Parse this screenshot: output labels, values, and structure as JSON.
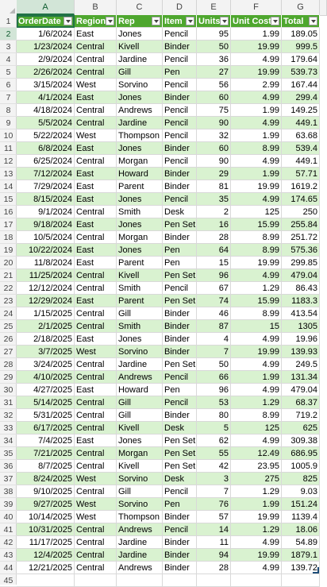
{
  "columns": [
    "A",
    "B",
    "C",
    "D",
    "E",
    "F",
    "G"
  ],
  "headers": [
    "OrderDate",
    "Region",
    "Rep",
    "Item",
    "Units",
    "Unit Cost",
    "Total"
  ],
  "row_numbers": [
    1,
    2,
    3,
    4,
    5,
    6,
    7,
    8,
    9,
    10,
    11,
    12,
    13,
    14,
    15,
    16,
    17,
    18,
    19,
    20,
    21,
    22,
    23,
    24,
    25,
    26,
    27,
    28,
    29,
    30,
    31,
    32,
    33,
    34,
    35,
    36,
    37,
    38,
    39,
    40,
    41,
    42,
    43,
    44,
    45
  ],
  "rows": [
    [
      "1/6/2024",
      "East",
      "Jones",
      "Pencil",
      "95",
      "1.99",
      "189.05"
    ],
    [
      "1/23/2024",
      "Central",
      "Kivell",
      "Binder",
      "50",
      "19.99",
      "999.5"
    ],
    [
      "2/9/2024",
      "Central",
      "Jardine",
      "Pencil",
      "36",
      "4.99",
      "179.64"
    ],
    [
      "2/26/2024",
      "Central",
      "Gill",
      "Pen",
      "27",
      "19.99",
      "539.73"
    ],
    [
      "3/15/2024",
      "West",
      "Sorvino",
      "Pencil",
      "56",
      "2.99",
      "167.44"
    ],
    [
      "4/1/2024",
      "East",
      "Jones",
      "Binder",
      "60",
      "4.99",
      "299.4"
    ],
    [
      "4/18/2024",
      "Central",
      "Andrews",
      "Pencil",
      "75",
      "1.99",
      "149.25"
    ],
    [
      "5/5/2024",
      "Central",
      "Jardine",
      "Pencil",
      "90",
      "4.99",
      "449.1"
    ],
    [
      "5/22/2024",
      "West",
      "Thompson",
      "Pencil",
      "32",
      "1.99",
      "63.68"
    ],
    [
      "6/8/2024",
      "East",
      "Jones",
      "Binder",
      "60",
      "8.99",
      "539.4"
    ],
    [
      "6/25/2024",
      "Central",
      "Morgan",
      "Pencil",
      "90",
      "4.99",
      "449.1"
    ],
    [
      "7/12/2024",
      "East",
      "Howard",
      "Binder",
      "29",
      "1.99",
      "57.71"
    ],
    [
      "7/29/2024",
      "East",
      "Parent",
      "Binder",
      "81",
      "19.99",
      "1619.2"
    ],
    [
      "8/15/2024",
      "East",
      "Jones",
      "Pencil",
      "35",
      "4.99",
      "174.65"
    ],
    [
      "9/1/2024",
      "Central",
      "Smith",
      "Desk",
      "2",
      "125",
      "250"
    ],
    [
      "9/18/2024",
      "East",
      "Jones",
      "Pen Set",
      "16",
      "15.99",
      "255.84"
    ],
    [
      "10/5/2024",
      "Central",
      "Morgan",
      "Binder",
      "28",
      "8.99",
      "251.72"
    ],
    [
      "10/22/2024",
      "East",
      "Jones",
      "Pen",
      "64",
      "8.99",
      "575.36"
    ],
    [
      "11/8/2024",
      "East",
      "Parent",
      "Pen",
      "15",
      "19.99",
      "299.85"
    ],
    [
      "11/25/2024",
      "Central",
      "Kivell",
      "Pen Set",
      "96",
      "4.99",
      "479.04"
    ],
    [
      "12/12/2024",
      "Central",
      "Smith",
      "Pencil",
      "67",
      "1.29",
      "86.43"
    ],
    [
      "12/29/2024",
      "East",
      "Parent",
      "Pen Set",
      "74",
      "15.99",
      "1183.3"
    ],
    [
      "1/15/2025",
      "Central",
      "Gill",
      "Binder",
      "46",
      "8.99",
      "413.54"
    ],
    [
      "2/1/2025",
      "Central",
      "Smith",
      "Binder",
      "87",
      "15",
      "1305"
    ],
    [
      "2/18/2025",
      "East",
      "Jones",
      "Binder",
      "4",
      "4.99",
      "19.96"
    ],
    [
      "3/7/2025",
      "West",
      "Sorvino",
      "Binder",
      "7",
      "19.99",
      "139.93"
    ],
    [
      "3/24/2025",
      "Central",
      "Jardine",
      "Pen Set",
      "50",
      "4.99",
      "249.5"
    ],
    [
      "4/10/2025",
      "Central",
      "Andrews",
      "Pencil",
      "66",
      "1.99",
      "131.34"
    ],
    [
      "4/27/2025",
      "East",
      "Howard",
      "Pen",
      "96",
      "4.99",
      "479.04"
    ],
    [
      "5/14/2025",
      "Central",
      "Gill",
      "Pencil",
      "53",
      "1.29",
      "68.37"
    ],
    [
      "5/31/2025",
      "Central",
      "Gill",
      "Binder",
      "80",
      "8.99",
      "719.2"
    ],
    [
      "6/17/2025",
      "Central",
      "Kivell",
      "Desk",
      "5",
      "125",
      "625"
    ],
    [
      "7/4/2025",
      "East",
      "Jones",
      "Pen Set",
      "62",
      "4.99",
      "309.38"
    ],
    [
      "7/21/2025",
      "Central",
      "Morgan",
      "Pen Set",
      "55",
      "12.49",
      "686.95"
    ],
    [
      "8/7/2025",
      "Central",
      "Kivell",
      "Pen Set",
      "42",
      "23.95",
      "1005.9"
    ],
    [
      "8/24/2025",
      "West",
      "Sorvino",
      "Desk",
      "3",
      "275",
      "825"
    ],
    [
      "9/10/2025",
      "Central",
      "Gill",
      "Pencil",
      "7",
      "1.29",
      "9.03"
    ],
    [
      "9/27/2025",
      "West",
      "Sorvino",
      "Pen",
      "76",
      "1.99",
      "151.24"
    ],
    [
      "10/14/2025",
      "West",
      "Thompson",
      "Binder",
      "57",
      "19.99",
      "1139.4"
    ],
    [
      "10/31/2025",
      "Central",
      "Andrews",
      "Pencil",
      "14",
      "1.29",
      "18.06"
    ],
    [
      "11/17/2025",
      "Central",
      "Jardine",
      "Binder",
      "11",
      "4.99",
      "54.89"
    ],
    [
      "12/4/2025",
      "Central",
      "Jardine",
      "Binder",
      "94",
      "19.99",
      "1879.1"
    ],
    [
      "12/21/2025",
      "Central",
      "Andrews",
      "Binder",
      "28",
      "4.99",
      "139.72"
    ]
  ],
  "colors": {
    "header_fill": "#4ea72e",
    "band_fill": "#d9f2d0",
    "selection": "#217346"
  }
}
